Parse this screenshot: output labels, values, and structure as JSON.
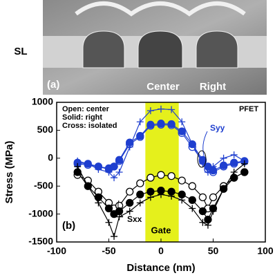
{
  "image_panel": {
    "label": "(a)",
    "side_label": "SL",
    "region_labels": [
      "Center",
      "Right"
    ]
  },
  "chart_data": {
    "type": "line",
    "panel_label": "(b)",
    "x_label": "Distance (nm)",
    "y_label": "Stress (MPa)",
    "annotations": {
      "legend_lines": [
        "Open: center",
        "Solid: right",
        "Cross: isolated"
      ],
      "device": "PFET",
      "syy": "Syy",
      "sxx": "Sxx",
      "gate": "Gate"
    },
    "gate_range": [
      -15,
      17
    ],
    "gate_color": "#e5f01c",
    "xlim": [
      -100,
      100
    ],
    "xticks": [
      -100,
      -50,
      0,
      50,
      100
    ],
    "ylim": [
      -1500,
      1000
    ],
    "yticks": [
      -1500,
      -1000,
      -500,
      0,
      500,
      1000
    ],
    "x": [
      -80,
      -70,
      -60,
      -50,
      -45,
      -40,
      -30,
      -20,
      -10,
      0,
      10,
      20,
      30,
      40,
      45,
      50,
      60,
      70,
      80
    ],
    "series": [
      {
        "color": "#1f3fcf",
        "marker": "open",
        "values": [
          -100,
          -120,
          -150,
          -200,
          -150,
          -50,
          250,
          380,
          580,
          600,
          590,
          450,
          200,
          -50,
          -200,
          -250,
          -150,
          -100,
          -60
        ]
      },
      {
        "color": "#1f3fcf",
        "marker": "solid",
        "values": [
          -80,
          -100,
          -150,
          -180,
          -150,
          -30,
          280,
          400,
          600,
          620,
          610,
          480,
          250,
          -30,
          -150,
          -220,
          -130,
          -80,
          -50
        ]
      },
      {
        "color": "#1f3fcf",
        "marker": "cross",
        "values": [
          -50,
          -100,
          -200,
          -250,
          -350,
          -250,
          200,
          650,
          850,
          880,
          870,
          650,
          250,
          -100,
          -250,
          -150,
          0,
          60,
          -50
        ]
      },
      {
        "color": "#000000",
        "marker": "open",
        "values": [
          -300,
          -400,
          -600,
          -800,
          -900,
          -850,
          -600,
          -450,
          -350,
          -300,
          -320,
          -400,
          -500,
          -700,
          -900,
          -700,
          -500,
          -350,
          -250
        ]
      },
      {
        "color": "#000000",
        "marker": "solid",
        "values": [
          -250,
          -500,
          -700,
          -900,
          -1000,
          -950,
          -800,
          -650,
          -600,
          -580,
          -600,
          -650,
          -750,
          -950,
          -1100,
          -900,
          -550,
          -350,
          -250
        ]
      },
      {
        "color": "#000000",
        "marker": "cross",
        "values": [
          -150,
          -500,
          -800,
          -1150,
          -1400,
          -1050,
          -950,
          -800,
          -700,
          -650,
          -680,
          -750,
          -900,
          -1150,
          -1200,
          -950,
          -550,
          -250,
          -100
        ]
      }
    ]
  }
}
